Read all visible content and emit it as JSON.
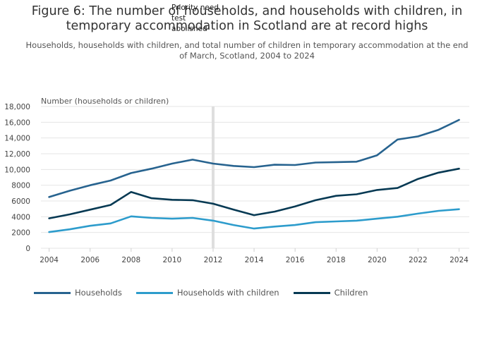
{
  "title": "Figure 6: The number of households, and households with children, in temporary accommodation in Scotland are at record highs",
  "subtitle": "Households, households with children, and total number of children in temporary accommodation at the end of March, Scotland, 2004 to 2024",
  "annotation": "Priority need test abolished",
  "colors": {
    "households": "#27638f",
    "households_with_children": "#2d9ccc",
    "children": "#063953",
    "grid": "#e5e5e5",
    "marker": "#dedede"
  },
  "chart_data": {
    "type": "line",
    "title": "Figure 6: The number of households, and households with children, in temporary accommodation in Scotland are at record highs",
    "subtitle": "Households, households with children, and total number of children in temporary accommodation at the end of March, Scotland, 2004 to 2024",
    "ylabel": "Number (households or children)",
    "xlabel": "",
    "x": [
      2004,
      2005,
      2006,
      2007,
      2008,
      2009,
      2010,
      2011,
      2012,
      2013,
      2014,
      2015,
      2016,
      2017,
      2018,
      2019,
      2020,
      2021,
      2022,
      2023,
      2024
    ],
    "xlim": [
      2003.6,
      2024.5
    ],
    "ylim": [
      0,
      18000
    ],
    "x_ticks": [
      "2004",
      "2006",
      "2008",
      "2010",
      "2012",
      "2014",
      "2016",
      "2018",
      "2020",
      "2022",
      "2024"
    ],
    "y_ticks": [
      "0",
      "2000",
      "4000",
      "6000",
      "8000",
      "10,000",
      "12,000",
      "14,000",
      "16,000",
      "18,000"
    ],
    "grid": true,
    "legend_position": "bottom",
    "vertical_marker": {
      "x": 2012,
      "label": "Priority need test abolished"
    },
    "series": [
      {
        "name": "Households",
        "color": "#27638f",
        "values": [
          6500,
          7300,
          8000,
          8600,
          9550,
          10100,
          10750,
          11250,
          10750,
          10450,
          10300,
          10600,
          10570,
          10880,
          10930,
          10990,
          11800,
          13800,
          14200,
          15040,
          16300
        ]
      },
      {
        "name": "Households with children",
        "color": "#2d9ccc",
        "values": [
          2050,
          2400,
          2850,
          3150,
          4050,
          3850,
          3750,
          3850,
          3500,
          2950,
          2500,
          2750,
          2950,
          3300,
          3400,
          3500,
          3750,
          4000,
          4400,
          4750,
          4950
        ]
      },
      {
        "name": "Children",
        "color": "#063953",
        "values": [
          3800,
          4300,
          4900,
          5500,
          7150,
          6350,
          6150,
          6100,
          5650,
          4900,
          4200,
          4650,
          5300,
          6100,
          6650,
          6850,
          7400,
          7650,
          8800,
          9600,
          10100
        ]
      }
    ]
  }
}
